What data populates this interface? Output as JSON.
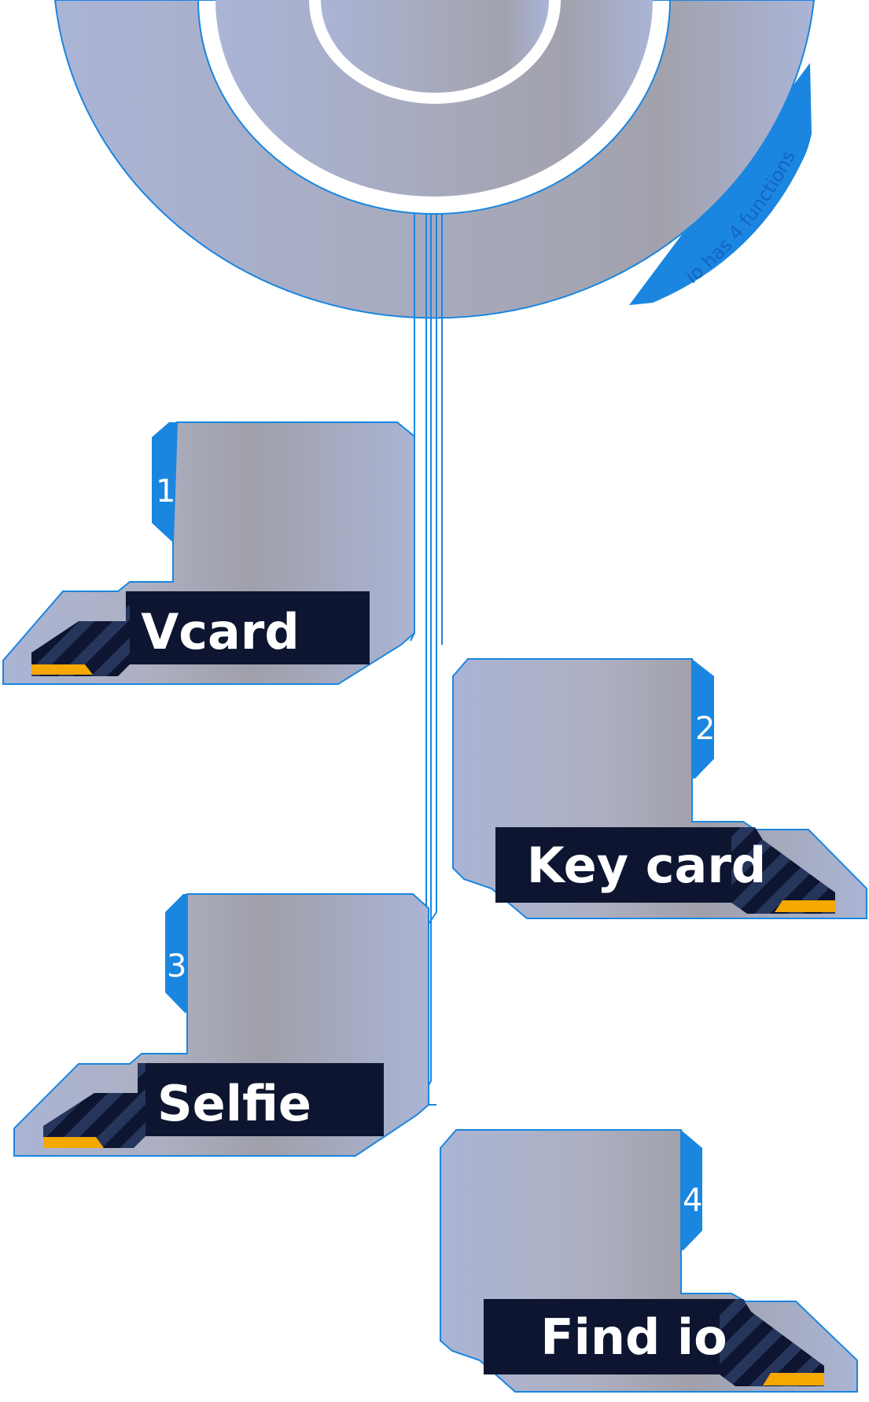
{
  "header": {
    "arc_text": "io has 4 functions"
  },
  "functions": [
    {
      "number": "1",
      "label": "Vcard"
    },
    {
      "number": "2",
      "label": "Key card"
    },
    {
      "number": "3",
      "label": "Selfie"
    },
    {
      "number": "4",
      "label": "Find io"
    }
  ],
  "colors": {
    "accent": "#1a86e0",
    "panel": "#a9afc4",
    "label_bg": "#0d1530",
    "highlight": "#f5a800"
  }
}
